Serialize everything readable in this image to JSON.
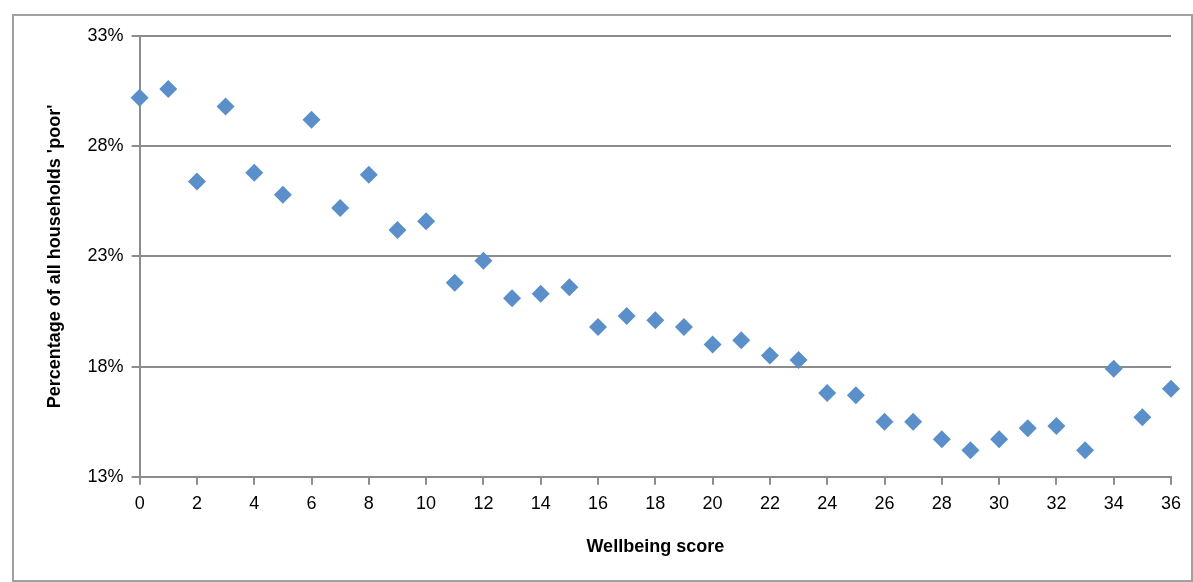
{
  "chart_data": {
    "type": "scatter",
    "xlabel": "Wellbeing score",
    "ylabel": "Percentage of all households 'poor'",
    "x": [
      0,
      1,
      2,
      3,
      4,
      5,
      6,
      7,
      8,
      9,
      10,
      11,
      12,
      13,
      14,
      15,
      16,
      17,
      18,
      19,
      20,
      21,
      22,
      23,
      24,
      25,
      26,
      27,
      28,
      29,
      30,
      31,
      32,
      33,
      34,
      35,
      36
    ],
    "series": [
      {
        "color": "#5b8fc9",
        "values": [
          30.2,
          30.6,
          26.4,
          29.8,
          26.8,
          25.8,
          29.2,
          25.2,
          26.7,
          24.2,
          24.6,
          21.8,
          22.8,
          21.1,
          21.3,
          21.6,
          19.8,
          20.3,
          20.1,
          19.8,
          19.0,
          19.2,
          18.5,
          18.3,
          16.8,
          16.7,
          15.5,
          15.5,
          14.7,
          14.2,
          14.7,
          15.2,
          15.3,
          14.2,
          17.9,
          15.7,
          17.0
        ]
      }
    ],
    "xlim": [
      0,
      36
    ],
    "xticks": [
      0,
      2,
      4,
      6,
      8,
      10,
      12,
      14,
      16,
      18,
      20,
      22,
      24,
      26,
      28,
      30,
      32,
      34,
      36
    ],
    "ylim": [
      13,
      33
    ],
    "yticks": [
      {
        "value": 13,
        "label": "13%"
      },
      {
        "value": 18,
        "label": "18%"
      },
      {
        "value": 23,
        "label": "23%"
      },
      {
        "value": 28,
        "label": "28%"
      },
      {
        "value": 33,
        "label": "33%"
      }
    ],
    "grid": "y",
    "marker": "diamond",
    "legend": false
  }
}
